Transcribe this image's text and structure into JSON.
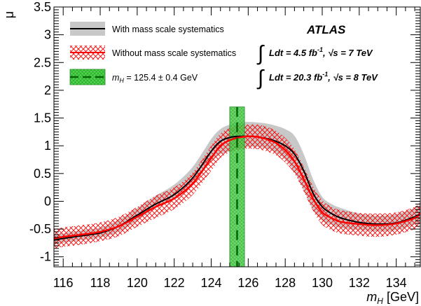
{
  "chart_data": {
    "type": "line",
    "experiment_label": "ATLAS",
    "lumi_7tev": "Ldt = 4.5 fb",
    "lumi_7tev_exp": "-1",
    "lumi_7tev_energy": ",  √s = 7 TeV",
    "lumi_8tev": "Ldt = 20.3 fb",
    "lumi_8tev_exp": "-1",
    "lumi_8tev_energy": ",  √s = 8 TeV",
    "xlabel_main": "m",
    "xlabel_sub": "H",
    "xlabel_unit": " [GeV]",
    "ylabel": "μ",
    "xlim": [
      115.5,
      135.3
    ],
    "ylim": [
      -1.18,
      3.5
    ],
    "xticks": [
      "116",
      "118",
      "120",
      "122",
      "124",
      "126",
      "128",
      "130",
      "132",
      "134"
    ],
    "xtick_values": [
      116,
      118,
      120,
      122,
      124,
      126,
      128,
      130,
      132,
      134
    ],
    "yticks": [
      "-1",
      "-0.5",
      "0",
      "0.5",
      "1",
      "1.5",
      "2",
      "2.5",
      "3",
      "3.5"
    ],
    "ytick_values": [
      -1,
      -0.5,
      0,
      0.5,
      1,
      1.5,
      2,
      2.5,
      3,
      3.5
    ],
    "series": [
      {
        "name": "With mass scale systematics",
        "line_color": "#000000",
        "band_color": "#c8c8c8",
        "x": [
          115.5,
          116,
          117,
          118,
          119,
          120,
          121,
          122,
          123,
          124,
          124.5,
          125,
          125.5,
          126,
          126.5,
          127,
          127.5,
          128,
          128.5,
          129,
          129.5,
          130,
          130.5,
          131,
          132,
          133,
          134,
          135,
          135.3
        ],
        "y": [
          -0.7,
          -0.67,
          -0.62,
          -0.57,
          -0.45,
          -0.25,
          -0.05,
          0.12,
          0.42,
          0.9,
          1.08,
          1.15,
          1.17,
          1.17,
          1.16,
          1.13,
          1.08,
          1.0,
          0.85,
          0.55,
          0.15,
          -0.1,
          -0.22,
          -0.3,
          -0.38,
          -0.41,
          -0.39,
          -0.28,
          -0.22
        ],
        "band_low": [
          -0.78,
          -0.75,
          -0.7,
          -0.65,
          -0.55,
          -0.35,
          -0.12,
          0.05,
          0.3,
          0.72,
          0.85,
          0.9,
          0.95,
          0.98,
          0.98,
          0.95,
          0.88,
          0.75,
          0.52,
          0.2,
          -0.15,
          -0.35,
          -0.42,
          -0.48,
          -0.52,
          -0.54,
          -0.52,
          -0.42,
          -0.36
        ],
        "band_high": [
          -0.6,
          -0.58,
          -0.52,
          -0.47,
          -0.33,
          -0.12,
          0.1,
          0.3,
          0.62,
          1.12,
          1.3,
          1.38,
          1.42,
          1.43,
          1.42,
          1.4,
          1.36,
          1.3,
          1.18,
          0.85,
          0.4,
          0.08,
          -0.05,
          -0.12,
          -0.22,
          -0.26,
          -0.23,
          -0.12,
          -0.05
        ]
      },
      {
        "name": "Without mass scale systematics",
        "line_color": "#ff0000",
        "band_color": "#ff0000",
        "x": [
          115.5,
          116,
          117,
          118,
          119,
          120,
          121,
          122,
          123,
          124,
          124.5,
          125,
          125.5,
          126,
          126.5,
          127,
          127.5,
          128,
          128.5,
          129,
          129.5,
          130,
          130.5,
          131,
          132,
          133,
          134,
          135,
          135.3
        ],
        "y": [
          -0.67,
          -0.64,
          -0.6,
          -0.55,
          -0.45,
          -0.28,
          -0.1,
          0.05,
          0.32,
          0.78,
          1.0,
          1.1,
          1.15,
          1.17,
          1.16,
          1.12,
          1.05,
          0.92,
          0.72,
          0.4,
          0.05,
          -0.2,
          -0.3,
          -0.37,
          -0.41,
          -0.43,
          -0.4,
          -0.3,
          -0.22
        ],
        "band_low": [
          -0.85,
          -0.82,
          -0.78,
          -0.72,
          -0.63,
          -0.46,
          -0.3,
          -0.14,
          0.12,
          0.55,
          0.78,
          0.88,
          0.93,
          0.95,
          0.94,
          0.9,
          0.83,
          0.7,
          0.5,
          0.18,
          -0.17,
          -0.42,
          -0.52,
          -0.58,
          -0.62,
          -0.64,
          -0.6,
          -0.5,
          -0.44
        ],
        "band_high": [
          -0.5,
          -0.47,
          -0.43,
          -0.38,
          -0.28,
          -0.1,
          0.1,
          0.25,
          0.52,
          1.0,
          1.22,
          1.32,
          1.37,
          1.38,
          1.38,
          1.34,
          1.27,
          1.14,
          0.94,
          0.62,
          0.27,
          0.02,
          -0.1,
          -0.16,
          -0.21,
          -0.22,
          -0.2,
          -0.1,
          -0.02
        ]
      }
    ],
    "mass_band": {
      "name_prefix": "m",
      "name_sub": "H",
      "name_value": " = 125.4 ± 0.4 GeV",
      "center": 125.4,
      "half_width": 0.4,
      "y_range": [
        -1.18,
        1.7
      ],
      "fill_color": "#4fd44f",
      "line_color": "#006400"
    },
    "legend_placement": "top-left",
    "grid": false
  }
}
